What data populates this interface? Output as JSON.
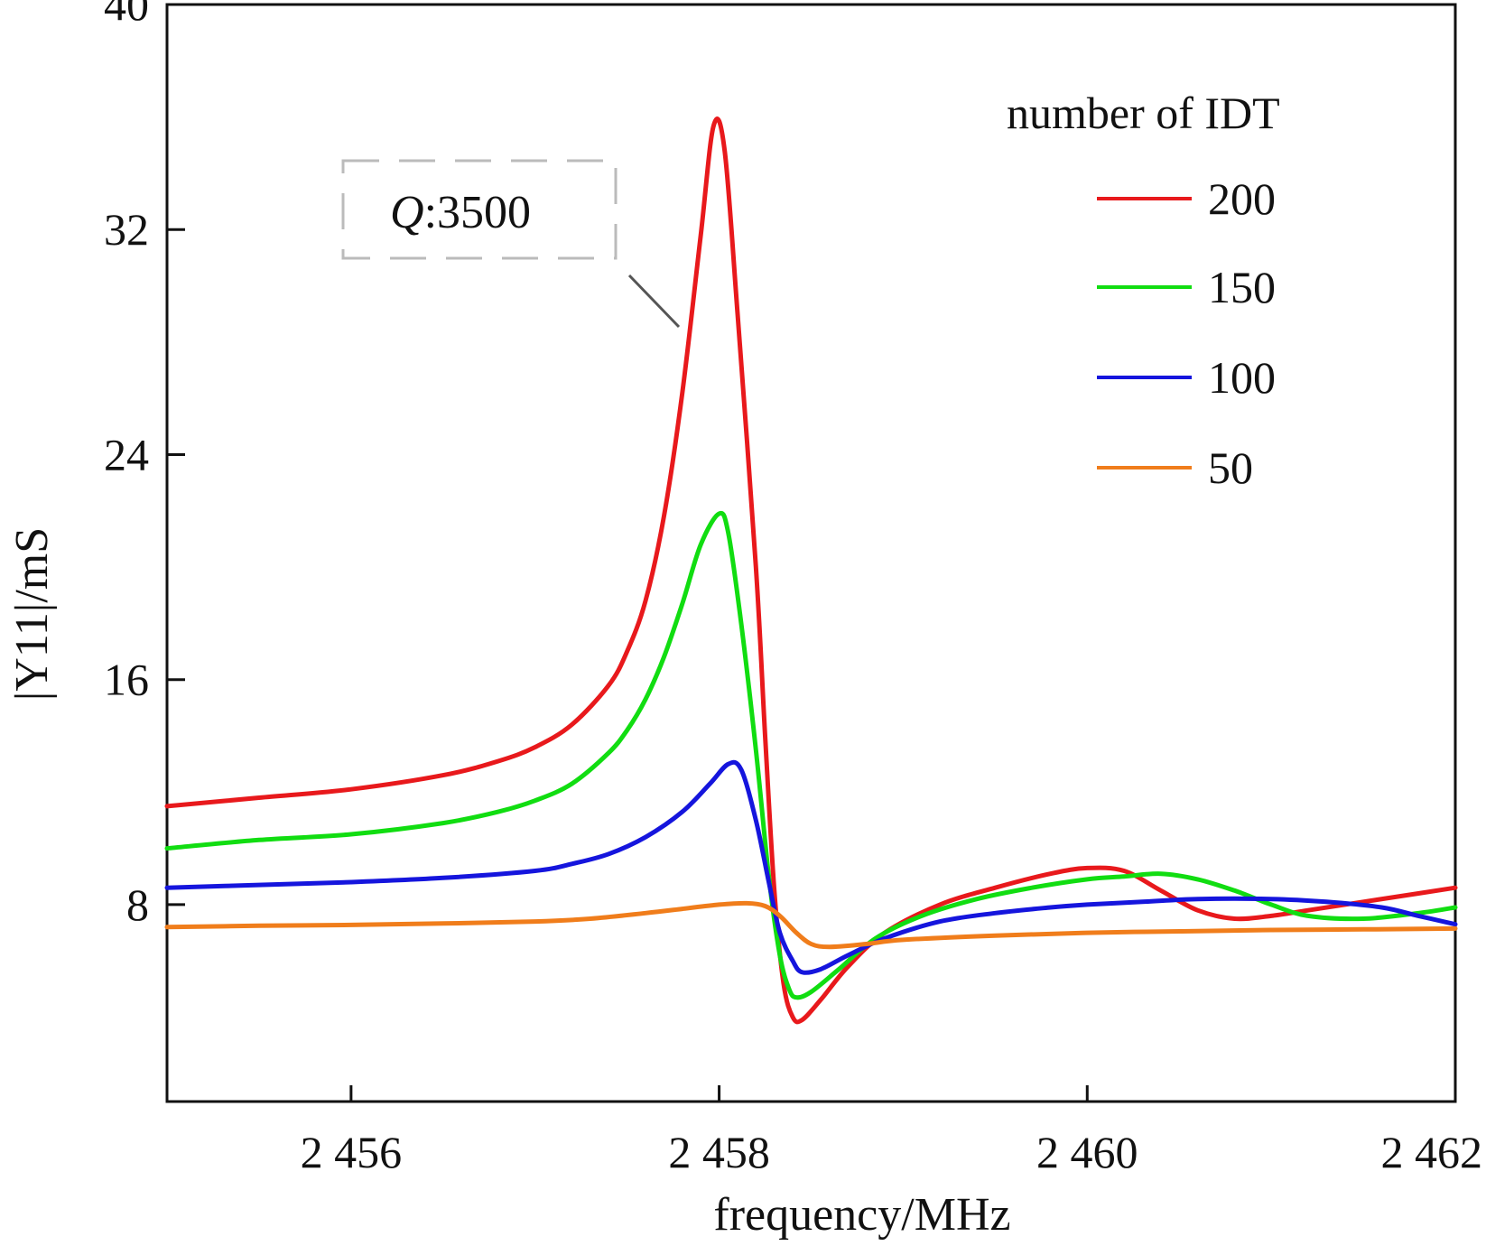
{
  "chart_data": {
    "type": "line",
    "xlabel": "frequency/MHz",
    "ylabel": "|Y11|/mS",
    "xlim": [
      2455,
      2462
    ],
    "ylim": [
      1,
      40
    ],
    "x_ticks": [
      2456,
      2458,
      2460,
      2462
    ],
    "x_tick_labels": [
      "2 456",
      "2 458",
      "2 460",
      "2 462"
    ],
    "y_ticks": [
      8,
      16,
      24,
      32,
      40
    ],
    "y_tick_labels": [
      "8",
      "16",
      "24",
      "32",
      "40"
    ],
    "grid": false,
    "legend": {
      "title": "number of IDT",
      "placement": "top-right",
      "entries": [
        "200",
        "150",
        "100",
        "50"
      ]
    },
    "annotation": {
      "prefix": "Q",
      "text": ":3500",
      "target_series": "200"
    },
    "series": [
      {
        "name": "200",
        "color": "#e8191c",
        "points": [
          [
            2455.0,
            11.5
          ],
          [
            2455.5,
            11.8
          ],
          [
            2456.0,
            12.1
          ],
          [
            2456.5,
            12.6
          ],
          [
            2456.8,
            13.1
          ],
          [
            2457.0,
            13.6
          ],
          [
            2457.2,
            14.4
          ],
          [
            2457.4,
            15.8
          ],
          [
            2457.5,
            17.0
          ],
          [
            2457.6,
            18.8
          ],
          [
            2457.7,
            21.8
          ],
          [
            2457.8,
            26.2
          ],
          [
            2457.9,
            31.8
          ],
          [
            2457.97,
            35.7
          ],
          [
            2458.03,
            34.8
          ],
          [
            2458.1,
            29.0
          ],
          [
            2458.2,
            20.0
          ],
          [
            2458.25,
            14.0
          ],
          [
            2458.3,
            8.5
          ],
          [
            2458.35,
            5.2
          ],
          [
            2458.4,
            4.0
          ],
          [
            2458.45,
            3.9
          ],
          [
            2458.55,
            4.6
          ],
          [
            2458.7,
            5.8
          ],
          [
            2458.9,
            7.0
          ],
          [
            2459.2,
            8.0
          ],
          [
            2459.5,
            8.6
          ],
          [
            2459.8,
            9.1
          ],
          [
            2460.0,
            9.3
          ],
          [
            2460.2,
            9.2
          ],
          [
            2460.4,
            8.5
          ],
          [
            2460.6,
            7.8
          ],
          [
            2460.8,
            7.5
          ],
          [
            2461.0,
            7.6
          ],
          [
            2461.2,
            7.8
          ],
          [
            2461.5,
            8.1
          ],
          [
            2461.8,
            8.4
          ],
          [
            2462.0,
            8.6
          ]
        ]
      },
      {
        "name": "150",
        "color": "#11dd11",
        "points": [
          [
            2455.0,
            10.0
          ],
          [
            2455.5,
            10.3
          ],
          [
            2456.0,
            10.5
          ],
          [
            2456.5,
            10.9
          ],
          [
            2456.8,
            11.3
          ],
          [
            2457.0,
            11.7
          ],
          [
            2457.2,
            12.3
          ],
          [
            2457.4,
            13.4
          ],
          [
            2457.5,
            14.2
          ],
          [
            2457.6,
            15.3
          ],
          [
            2457.7,
            16.8
          ],
          [
            2457.8,
            18.7
          ],
          [
            2457.9,
            20.8
          ],
          [
            2458.0,
            21.9
          ],
          [
            2458.05,
            21.2
          ],
          [
            2458.12,
            18.0
          ],
          [
            2458.2,
            13.5
          ],
          [
            2458.27,
            9.0
          ],
          [
            2458.33,
            6.2
          ],
          [
            2458.38,
            5.0
          ],
          [
            2458.42,
            4.7
          ],
          [
            2458.5,
            4.9
          ],
          [
            2458.65,
            5.7
          ],
          [
            2458.85,
            6.8
          ],
          [
            2459.1,
            7.6
          ],
          [
            2459.4,
            8.2
          ],
          [
            2459.7,
            8.6
          ],
          [
            2460.0,
            8.9
          ],
          [
            2460.2,
            9.0
          ],
          [
            2460.4,
            9.1
          ],
          [
            2460.6,
            8.9
          ],
          [
            2460.8,
            8.5
          ],
          [
            2461.0,
            8.0
          ],
          [
            2461.2,
            7.6
          ],
          [
            2461.5,
            7.5
          ],
          [
            2461.8,
            7.7
          ],
          [
            2462.0,
            7.9
          ]
        ]
      },
      {
        "name": "100",
        "color": "#1515dd",
        "points": [
          [
            2455.0,
            8.6
          ],
          [
            2455.5,
            8.7
          ],
          [
            2456.0,
            8.8
          ],
          [
            2456.5,
            8.95
          ],
          [
            2457.0,
            9.2
          ],
          [
            2457.2,
            9.45
          ],
          [
            2457.4,
            9.8
          ],
          [
            2457.6,
            10.4
          ],
          [
            2457.8,
            11.3
          ],
          [
            2457.95,
            12.3
          ],
          [
            2458.05,
            13.0
          ],
          [
            2458.12,
            12.8
          ],
          [
            2458.2,
            11.0
          ],
          [
            2458.27,
            8.8
          ],
          [
            2458.33,
            7.0
          ],
          [
            2458.4,
            6.0
          ],
          [
            2458.45,
            5.6
          ],
          [
            2458.55,
            5.7
          ],
          [
            2458.7,
            6.2
          ],
          [
            2458.9,
            6.8
          ],
          [
            2459.2,
            7.4
          ],
          [
            2459.5,
            7.7
          ],
          [
            2459.8,
            7.9
          ],
          [
            2460.0,
            8.0
          ],
          [
            2460.3,
            8.1
          ],
          [
            2460.6,
            8.2
          ],
          [
            2461.0,
            8.2
          ],
          [
            2461.3,
            8.1
          ],
          [
            2461.6,
            7.9
          ],
          [
            2461.8,
            7.6
          ],
          [
            2462.0,
            7.3
          ]
        ]
      },
      {
        "name": "50",
        "color": "#f07d1b",
        "points": [
          [
            2455.0,
            7.2
          ],
          [
            2455.5,
            7.25
          ],
          [
            2456.0,
            7.28
          ],
          [
            2456.5,
            7.33
          ],
          [
            2457.0,
            7.4
          ],
          [
            2457.3,
            7.5
          ],
          [
            2457.6,
            7.7
          ],
          [
            2457.8,
            7.85
          ],
          [
            2458.0,
            8.0
          ],
          [
            2458.15,
            8.05
          ],
          [
            2458.25,
            7.95
          ],
          [
            2458.33,
            7.6
          ],
          [
            2458.42,
            7.0
          ],
          [
            2458.5,
            6.6
          ],
          [
            2458.6,
            6.5
          ],
          [
            2458.8,
            6.6
          ],
          [
            2459.0,
            6.75
          ],
          [
            2459.5,
            6.9
          ],
          [
            2460.0,
            7.0
          ],
          [
            2460.5,
            7.05
          ],
          [
            2461.0,
            7.1
          ],
          [
            2461.5,
            7.12
          ],
          [
            2462.0,
            7.15
          ]
        ]
      }
    ]
  }
}
